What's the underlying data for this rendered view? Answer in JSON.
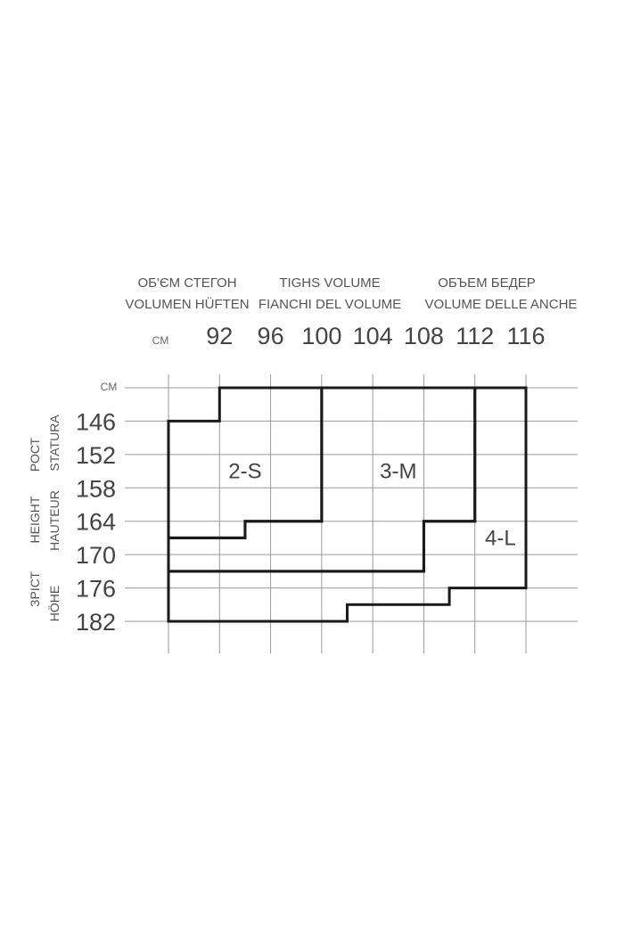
{
  "chart_data": {
    "type": "table",
    "header_labels": [
      [
        "ОБ'ЄМ СТЕГОН",
        "VOLUMEN HÜFTEN"
      ],
      [
        "TIGHS VOLUME",
        "FIANCHI DEL VOLUME"
      ],
      [
        "ОБЪЕМ БЕДЕР",
        "VOLUME DELLE ANCHE"
      ]
    ],
    "side_labels": [
      [
        "РОСТ",
        "STATURA"
      ],
      [
        "HEIGHT",
        "HAUTEUR"
      ],
      [
        "ЗРІСТ",
        "HÖHE"
      ]
    ],
    "x_unit": "CM",
    "y_unit": "CM",
    "x_ticks": [
      "92",
      "96",
      "100",
      "104",
      "108",
      "112",
      "116"
    ],
    "y_ticks": [
      "146",
      "152",
      "158",
      "164",
      "170",
      "176",
      "182"
    ],
    "xlim": [
      88,
      116
    ],
    "ylim": [
      140,
      182
    ],
    "grid": true,
    "sizes": [
      {
        "name": "2-S",
        "label_at": [
          94,
          155
        ],
        "boundary": [
          [
            88,
            146
          ],
          [
            92,
            146
          ],
          [
            92,
            140
          ],
          [
            100,
            140
          ],
          [
            100,
            164
          ],
          [
            94,
            164
          ],
          [
            94,
            167
          ],
          [
            88,
            167
          ]
        ]
      },
      {
        "name": "3-M",
        "label_at": [
          106,
          155
        ],
        "boundary": [
          [
            100,
            140
          ],
          [
            112,
            140
          ],
          [
            112,
            164
          ],
          [
            108,
            164
          ],
          [
            108,
            173
          ],
          [
            88,
            173
          ],
          [
            88,
            167
          ],
          [
            94,
            167
          ],
          [
            94,
            164
          ],
          [
            100,
            164
          ]
        ]
      },
      {
        "name": "4-L",
        "label_at": [
          114,
          167
        ],
        "boundary": [
          [
            112,
            140
          ],
          [
            116,
            140
          ],
          [
            116,
            176
          ],
          [
            110,
            176
          ],
          [
            110,
            179
          ],
          [
            102,
            179
          ],
          [
            102,
            182
          ],
          [
            88,
            182
          ],
          [
            88,
            173
          ],
          [
            108,
            173
          ],
          [
            108,
            164
          ],
          [
            112,
            164
          ]
        ]
      }
    ],
    "colors": {
      "grid": "#9a9a9a",
      "outline": "#1a1a1a",
      "text": "#444444"
    }
  }
}
